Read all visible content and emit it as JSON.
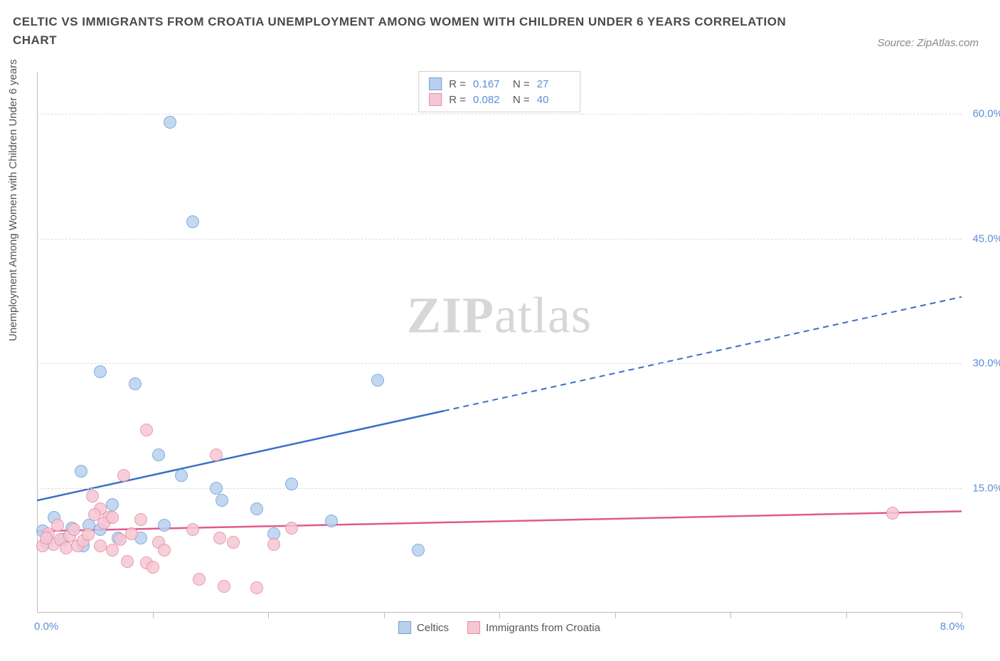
{
  "title": "CELTIC VS IMMIGRANTS FROM CROATIA UNEMPLOYMENT AMONG WOMEN WITH CHILDREN UNDER 6 YEARS CORRELATION CHART",
  "source_label": "Source: ZipAtlas.com",
  "y_axis_label": "Unemployment Among Women with Children Under 6 years",
  "watermark_bold": "ZIP",
  "watermark_light": "atlas",
  "chart": {
    "type": "scatter",
    "x_min": 0.0,
    "x_max": 8.0,
    "x_min_label": "0.0%",
    "x_max_label": "8.0%",
    "x_tick_positions_pct": [
      12.5,
      25,
      37.5,
      50,
      62.5,
      75,
      87.5,
      100
    ],
    "y_min": 0.0,
    "y_max": 65.0,
    "y_ticks": [
      {
        "value": 15.0,
        "label": "15.0%"
      },
      {
        "value": 30.0,
        "label": "30.0%"
      },
      {
        "value": 45.0,
        "label": "45.0%"
      },
      {
        "value": 60.0,
        "label": "60.0%"
      }
    ],
    "grid_color": "#dcdcdc",
    "background_color": "#ffffff",
    "series": [
      {
        "name": "Celtics",
        "fill": "#b9d1ee",
        "stroke": "#6f9fd8",
        "line_color": "#3a6fc7",
        "R": "0.167",
        "N": "27",
        "regression": {
          "x1_pct": 0,
          "y1_val": 13.5,
          "x2_pct": 100,
          "y2_val": 38.0,
          "solid_until_pct": 44
        },
        "points": [
          {
            "x": 1.15,
            "y": 59.0
          },
          {
            "x": 1.35,
            "y": 47.0
          },
          {
            "x": 0.55,
            "y": 29.0
          },
          {
            "x": 0.85,
            "y": 27.5
          },
          {
            "x": 2.95,
            "y": 28.0
          },
          {
            "x": 0.38,
            "y": 17.0
          },
          {
            "x": 1.05,
            "y": 19.0
          },
          {
            "x": 1.25,
            "y": 16.5
          },
          {
            "x": 0.65,
            "y": 13.0
          },
          {
            "x": 0.15,
            "y": 11.5
          },
          {
            "x": 0.45,
            "y": 10.5
          },
          {
            "x": 0.05,
            "y": 9.8
          },
          {
            "x": 0.3,
            "y": 10.2
          },
          {
            "x": 0.55,
            "y": 10.0
          },
          {
            "x": 1.55,
            "y": 15.0
          },
          {
            "x": 1.6,
            "y": 13.5
          },
          {
            "x": 2.2,
            "y": 15.5
          },
          {
            "x": 1.9,
            "y": 12.5
          },
          {
            "x": 0.08,
            "y": 8.5
          },
          {
            "x": 0.7,
            "y": 9.0
          },
          {
            "x": 0.22,
            "y": 8.8
          },
          {
            "x": 0.9,
            "y": 9.0
          },
          {
            "x": 2.55,
            "y": 11.0
          },
          {
            "x": 3.3,
            "y": 7.5
          },
          {
            "x": 2.05,
            "y": 9.5
          },
          {
            "x": 0.4,
            "y": 8.0
          },
          {
            "x": 1.1,
            "y": 10.5
          }
        ]
      },
      {
        "name": "Immigrants from Croatia",
        "fill": "#f5c7d3",
        "stroke": "#e88aa3",
        "line_color": "#e05a8a",
        "R": "0.082",
        "N": "40",
        "regression": {
          "x1_pct": 0,
          "y1_val": 9.8,
          "x2_pct": 100,
          "y2_val": 12.2,
          "solid_until_pct": 100
        },
        "points": [
          {
            "x": 0.95,
            "y": 22.0
          },
          {
            "x": 1.55,
            "y": 19.0
          },
          {
            "x": 0.75,
            "y": 16.5
          },
          {
            "x": 0.48,
            "y": 14.0
          },
          {
            "x": 0.55,
            "y": 12.5
          },
          {
            "x": 0.62,
            "y": 11.5
          },
          {
            "x": 0.1,
            "y": 9.5
          },
          {
            "x": 0.14,
            "y": 8.2
          },
          {
            "x": 0.2,
            "y": 8.8
          },
          {
            "x": 0.25,
            "y": 7.8
          },
          {
            "x": 0.28,
            "y": 9.2
          },
          {
            "x": 0.32,
            "y": 10.0
          },
          {
            "x": 0.35,
            "y": 8.0
          },
          {
            "x": 0.4,
            "y": 8.6
          },
          {
            "x": 0.44,
            "y": 9.4
          },
          {
            "x": 0.5,
            "y": 11.8
          },
          {
            "x": 0.55,
            "y": 8.0
          },
          {
            "x": 0.58,
            "y": 10.8
          },
          {
            "x": 0.65,
            "y": 7.5
          },
          {
            "x": 0.65,
            "y": 11.5
          },
          {
            "x": 0.72,
            "y": 8.8
          },
          {
            "x": 0.78,
            "y": 6.2
          },
          {
            "x": 0.82,
            "y": 9.5
          },
          {
            "x": 0.9,
            "y": 11.2
          },
          {
            "x": 0.95,
            "y": 6.0
          },
          {
            "x": 1.0,
            "y": 5.5
          },
          {
            "x": 1.05,
            "y": 8.5
          },
          {
            "x": 1.1,
            "y": 7.5
          },
          {
            "x": 1.35,
            "y": 10.0
          },
          {
            "x": 1.4,
            "y": 4.0
          },
          {
            "x": 1.58,
            "y": 9.0
          },
          {
            "x": 1.62,
            "y": 3.2
          },
          {
            "x": 1.7,
            "y": 8.5
          },
          {
            "x": 1.9,
            "y": 3.0
          },
          {
            "x": 2.05,
            "y": 8.2
          },
          {
            "x": 2.2,
            "y": 10.2
          },
          {
            "x": 0.05,
            "y": 8.0
          },
          {
            "x": 0.08,
            "y": 9.0
          },
          {
            "x": 0.18,
            "y": 10.5
          },
          {
            "x": 7.4,
            "y": 12.0
          }
        ]
      }
    ],
    "legend_bottom": [
      {
        "label": "Celtics",
        "fill": "#b9d1ee",
        "stroke": "#6f9fd8"
      },
      {
        "label": "Immigrants from Croatia",
        "fill": "#f5c7d3",
        "stroke": "#e88aa3"
      }
    ],
    "legend_top_labels": {
      "R": "R =",
      "N": "N ="
    }
  }
}
